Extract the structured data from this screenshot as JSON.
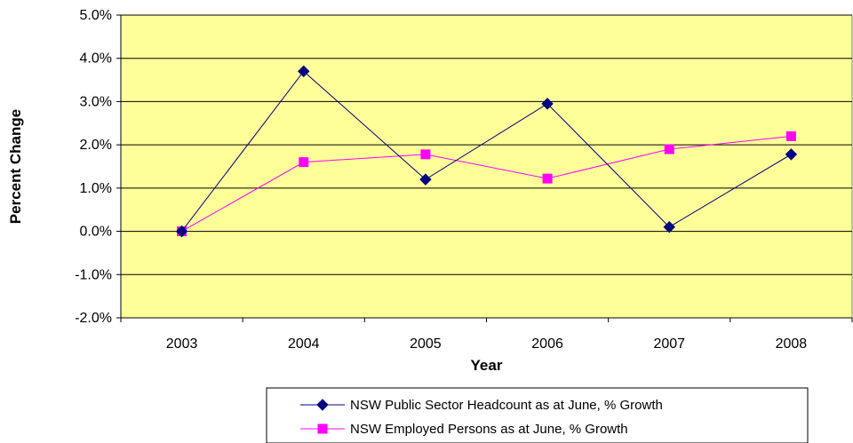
{
  "chart_data": {
    "type": "line",
    "categories": [
      "2003",
      "2004",
      "2005",
      "2006",
      "2007",
      "2008"
    ],
    "series": [
      {
        "name": "NSW Public Sector Headcount as at June, % Growth",
        "values": [
          0.0,
          3.7,
          1.2,
          2.95,
          0.1,
          1.78
        ],
        "color": "#000080",
        "marker": "diamond"
      },
      {
        "name": "NSW Employed Persons as at June, % Growth",
        "values": [
          0.0,
          1.6,
          1.78,
          1.22,
          1.9,
          2.2
        ],
        "color": "#ff00ff",
        "marker": "square"
      }
    ],
    "xlabel": "Year",
    "ylabel": "Percent Change",
    "ylim": [
      -2.0,
      5.0
    ],
    "yticks": [
      "5.0%",
      "4.0%",
      "3.0%",
      "2.0%",
      "1.0%",
      "0.0%",
      "-1.0%",
      "-2.0%"
    ],
    "grid": "horizontal",
    "plot_background": "#ffff99",
    "legend_position": "bottom"
  }
}
